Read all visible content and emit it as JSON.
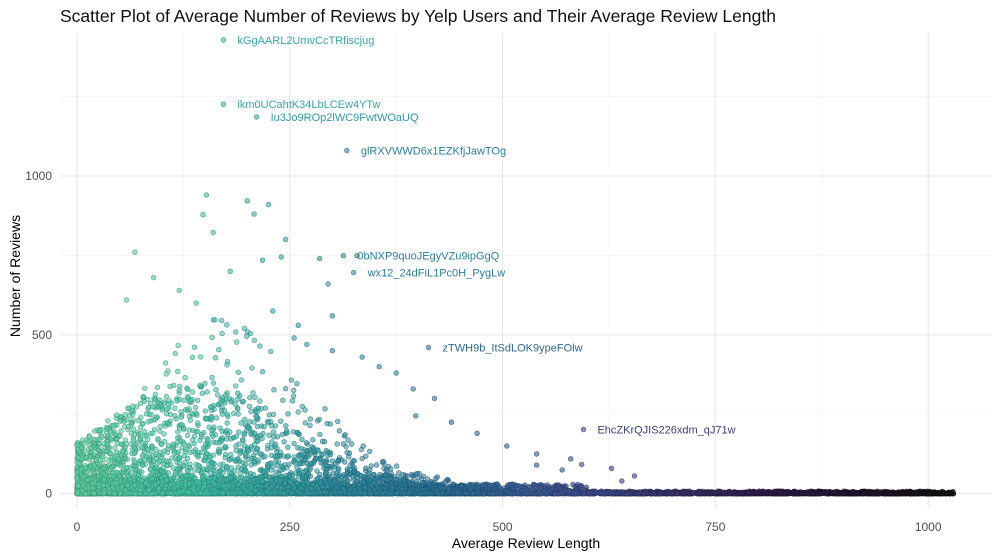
{
  "chart_data": {
    "type": "scatter",
    "title": "Scatter Plot of Average Number of Reviews by Yelp Users and Their Average Review Length",
    "xlabel": "Average Review Length",
    "ylabel": "Number of Reviews",
    "xlim": [
      -20,
      1075
    ],
    "ylim": [
      -45,
      1450
    ],
    "x_ticks": [
      0,
      250,
      500,
      750,
      1000
    ],
    "y_ticks": [
      0,
      500,
      1000
    ],
    "grid": true,
    "legend": "none",
    "color_scale": {
      "by": "x",
      "stops": [
        {
          "x": 0,
          "color": "#5fd3a3"
        },
        {
          "x": 150,
          "color": "#3ec1a8"
        },
        {
          "x": 300,
          "color": "#2d8fa2"
        },
        {
          "x": 450,
          "color": "#2c6e9a"
        },
        {
          "x": 600,
          "color": "#3e4a8c"
        },
        {
          "x": 800,
          "color": "#301c4a"
        },
        {
          "x": 1030,
          "color": "#111111"
        }
      ]
    },
    "labeled_points": [
      {
        "label": "kGgAARL2UmvCcTRfiscjug",
        "x": 172,
        "y": 1428
      },
      {
        "label": "ikm0UCahtK34LbLCEw4YTw",
        "x": 172,
        "y": 1226
      },
      {
        "label": "Iu3Jo9ROp2lWC9FwtWOaUQ",
        "x": 211,
        "y": 1186
      },
      {
        "label": "glRXVWWD6x1EZKfjJawTOg",
        "x": 317,
        "y": 1080
      },
      {
        "label": "0bNXP9quoJEgyVZu9ipGgQ",
        "x": 313,
        "y": 749
      },
      {
        "label": "0bNXP9quoJEgyVZu9ipGgQ",
        "x": 329,
        "y": 749
      },
      {
        "label": "wx12_24dFiL1Pc0H_PygLw",
        "x": 325,
        "y": 696
      },
      {
        "label": "zTWH9b_ItSdLOK9ypeFOlw",
        "x": 413,
        "y": 460
      },
      {
        "label": "EhcZKrQJIS226xdm_qJ71w",
        "x": 595,
        "y": 202
      }
    ],
    "outliers": [
      [
        152,
        940
      ],
      [
        148,
        878
      ],
      [
        160,
        822
      ],
      [
        200,
        922
      ],
      [
        225,
        910
      ],
      [
        208,
        880
      ],
      [
        245,
        800
      ],
      [
        218,
        735
      ],
      [
        240,
        745
      ],
      [
        68,
        760
      ],
      [
        58,
        610
      ],
      [
        90,
        680
      ],
      [
        120,
        640
      ],
      [
        180,
        700
      ],
      [
        285,
        740
      ],
      [
        295,
        660
      ],
      [
        300,
        560
      ],
      [
        260,
        530
      ],
      [
        230,
        575
      ],
      [
        170,
        545
      ],
      [
        140,
        600
      ],
      [
        255,
        490
      ],
      [
        270,
        470
      ],
      [
        300,
        450
      ],
      [
        335,
        430
      ],
      [
        355,
        400
      ],
      [
        375,
        380
      ],
      [
        395,
        330
      ],
      [
        420,
        300
      ],
      [
        398,
        245
      ],
      [
        440,
        225
      ],
      [
        470,
        190
      ],
      [
        505,
        150
      ],
      [
        540,
        125
      ],
      [
        580,
        110
      ],
      [
        628,
        80
      ],
      [
        593,
        92
      ],
      [
        655,
        56
      ],
      [
        570,
        75
      ],
      [
        540,
        90
      ],
      [
        640,
        40
      ]
    ]
  }
}
